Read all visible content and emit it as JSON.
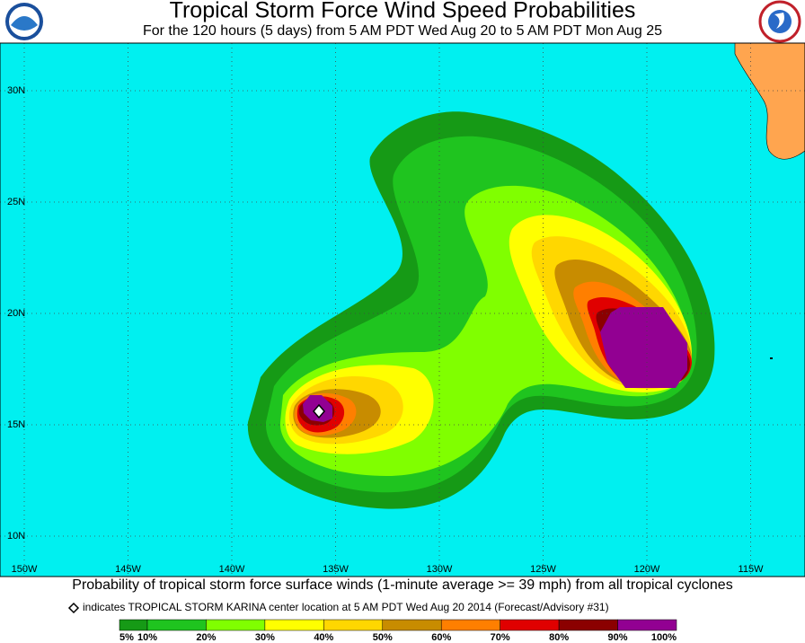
{
  "header": {
    "title": "Tropical Storm Force Wind Speed Probabilities",
    "subtitle": "For the 120 hours (5 days) from 5 AM PDT Wed Aug 20 to 5 AM PDT Mon Aug 25"
  },
  "map": {
    "lat_labels": [
      "30N",
      "25N",
      "20N",
      "15N",
      "10N"
    ],
    "lon_labels": [
      "150W",
      "145W",
      "140W",
      "135W",
      "130W",
      "125W",
      "120W",
      "115W"
    ]
  },
  "footer": {
    "caption": "Probability of tropical storm force surface winds (1-minute average >= 39 mph) from all tropical cyclones",
    "note": "indicates TROPICAL STORM KARINA center location at 5 AM PDT Wed Aug 20 2014 (Forecast/Advisory #31)"
  },
  "legend": {
    "labels": [
      "5%",
      "10%",
      "20%",
      "30%",
      "40%",
      "50%",
      "60%",
      "70%",
      "80%",
      "90%",
      "100%"
    ],
    "colors": [
      "#169a16",
      "#1fc41f",
      "#80ff00",
      "#ffff00",
      "#ffd700",
      "#c88c00",
      "#ff7f00",
      "#e00000",
      "#8b0000",
      "#920092"
    ]
  }
}
